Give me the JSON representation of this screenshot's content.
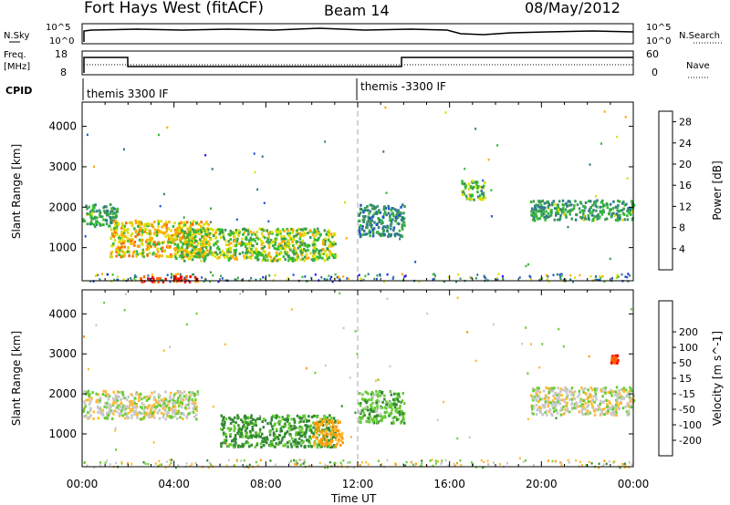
{
  "header": {
    "station": "Fort Hays West (fitACF)",
    "beam": "Beam 14",
    "date": "08/May/2012"
  },
  "noise_panel": {
    "left_label": "N.Sky",
    "right_label": "N.Search",
    "left_ticks": [
      "10^5",
      "10^0"
    ],
    "right_ticks": [
      "10^5",
      "10^0"
    ]
  },
  "freq_panel": {
    "left_label_line1": "Freq.",
    "left_label_line2": "[MHz]",
    "right_label": "Nave",
    "left_ticks": [
      "18",
      "8"
    ],
    "right_ticks": [
      "60",
      "0"
    ]
  },
  "cpid": {
    "label": "CPID",
    "modes": [
      {
        "name": "themis 3300 IF",
        "start_hour": 0
      },
      {
        "name": "themis -3300 IF",
        "start_hour": 12
      }
    ]
  },
  "colors": {
    "power": [
      "#1a1aff",
      "#2255cc",
      "#2f7a8a",
      "#3c9a55",
      "#33bb33",
      "#dddd00",
      "#ffaa00",
      "#ff6600",
      "#ee0000"
    ],
    "velocity": [
      "#ee0000",
      "#ff6600",
      "#ff9900",
      "#ffbb33",
      "#c8c8c8",
      "#c8c8c8",
      "#66cc33",
      "#338833",
      "#2244bb",
      "#1a1acc"
    ]
  },
  "chart_data": [
    {
      "type": "heatmap",
      "title": "Power",
      "x_label": "Time UT",
      "y_label": "Slant Range [km]",
      "x_range_hours": [
        0,
        24
      ],
      "y_range_km": [
        180,
        4600
      ],
      "x_ticks": [
        "00:00",
        "04:00",
        "08:00",
        "12:00",
        "16:00",
        "20:00",
        "00:00"
      ],
      "y_ticks": [
        1000,
        2000,
        3000,
        4000
      ],
      "colorbar_label": "Power [dB]",
      "colorbar_ticks": [
        4,
        8,
        12,
        16,
        20,
        24,
        28
      ],
      "colorbar_range": [
        0,
        30
      ],
      "features": [
        {
          "t": [
            0.0,
            1.5
          ],
          "range_km": [
            1550,
            2100
          ],
          "level": 12
        },
        {
          "t": [
            1.2,
            5.5
          ],
          "range_km": [
            800,
            1700
          ],
          "level": 20
        },
        {
          "t": [
            4.0,
            11.0
          ],
          "range_km": [
            700,
            1500
          ],
          "level": 16
        },
        {
          "t": [
            2.5,
            5.0
          ],
          "range_km": [
            180,
            320
          ],
          "level": 28
        },
        {
          "t": [
            12.0,
            14.0
          ],
          "range_km": [
            1300,
            2100
          ],
          "level": 10
        },
        {
          "t": [
            16.5,
            17.5
          ],
          "range_km": [
            2200,
            2700
          ],
          "level": 14
        },
        {
          "t": [
            19.5,
            24.0
          ],
          "range_km": [
            1700,
            2200
          ],
          "level": 12
        }
      ]
    },
    {
      "type": "heatmap",
      "title": "Velocity",
      "x_label": "Time UT",
      "y_label": "Slant Range [km]",
      "x_range_hours": [
        0,
        24
      ],
      "y_range_km": [
        180,
        4600
      ],
      "x_ticks": [
        "00:00",
        "04:00",
        "08:00",
        "12:00",
        "16:00",
        "20:00",
        "00:00"
      ],
      "y_ticks": [
        1000,
        2000,
        3000,
        4000
      ],
      "colorbar_label": "Velocity [m s^-1]",
      "colorbar_ticks": [
        -200,
        -100,
        -50,
        -15,
        15,
        50,
        100,
        200
      ],
      "features": [
        {
          "t": [
            0.0,
            5.0
          ],
          "range_km": [
            1400,
            2100
          ],
          "velocity": 0
        },
        {
          "t": [
            6.0,
            11.0
          ],
          "range_km": [
            700,
            1500
          ],
          "velocity": 60
        },
        {
          "t": [
            10.0,
            11.3
          ],
          "range_km": [
            700,
            1400
          ],
          "velocity": -60
        },
        {
          "t": [
            12.0,
            14.0
          ],
          "range_km": [
            1300,
            2100
          ],
          "velocity": 40
        },
        {
          "t": [
            19.5,
            24.0
          ],
          "range_km": [
            1500,
            2200
          ],
          "velocity": 0
        },
        {
          "t": [
            23.0,
            23.3
          ],
          "range_km": [
            2800,
            3000
          ],
          "velocity": -200
        }
      ]
    }
  ]
}
